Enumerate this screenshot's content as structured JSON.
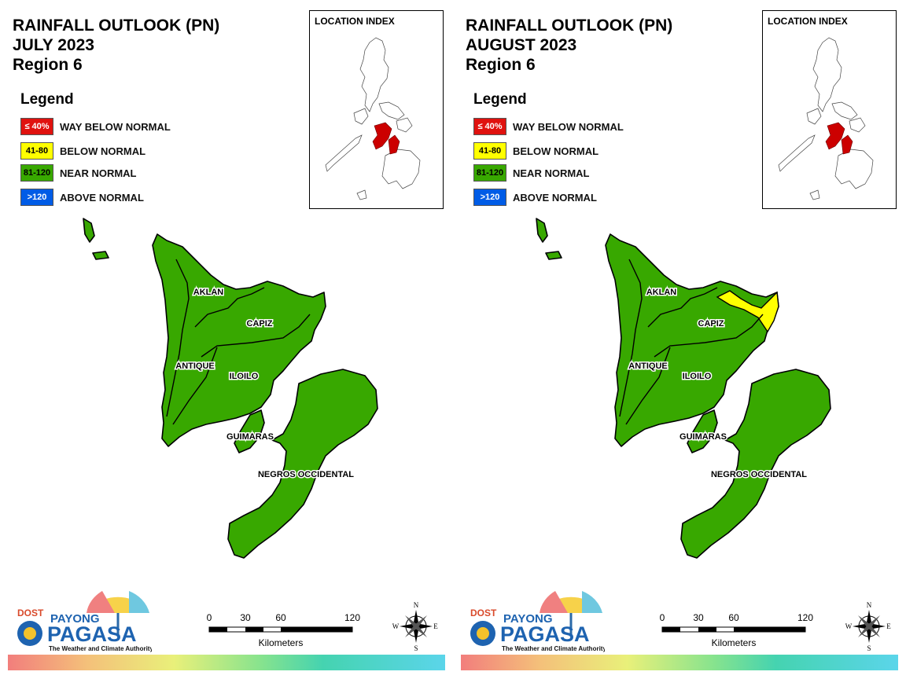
{
  "panels": [
    {
      "title_line1": "RAINFALL OUTLOOK (PN)",
      "title_line2": "JULY 2023",
      "title_line3": "Region 6",
      "provinces": [
        {
          "name": "AKLAN",
          "category": "near_normal"
        },
        {
          "name": "CAPIZ",
          "category": "near_normal"
        },
        {
          "name": "ANTIQUE",
          "category": "near_normal"
        },
        {
          "name": "ILOILO",
          "category": "near_normal"
        },
        {
          "name": "GUIMARAS",
          "category": "near_normal"
        },
        {
          "name": "NEGROS OCCIDENTAL",
          "category": "near_normal"
        }
      ],
      "capiz_north_category": "near_normal"
    },
    {
      "title_line1": "RAINFALL OUTLOOK (PN)",
      "title_line2": "AUGUST 2023",
      "title_line3": "Region 6",
      "provinces": [
        {
          "name": "AKLAN",
          "category": "near_normal"
        },
        {
          "name": "CAPIZ",
          "category": "near_normal"
        },
        {
          "name": "ANTIQUE",
          "category": "near_normal"
        },
        {
          "name": "ILOILO",
          "category": "near_normal"
        },
        {
          "name": "GUIMARAS",
          "category": "near_normal"
        },
        {
          "name": "NEGROS OCCIDENTAL",
          "category": "near_normal"
        }
      ],
      "capiz_north_category": "below_normal"
    }
  ],
  "legend": {
    "title": "Legend",
    "items": [
      {
        "key": "way_below_normal",
        "range": "≤ 40%",
        "label": "WAY BELOW NORMAL",
        "color": "#e0120f",
        "text_color": "#ffffff"
      },
      {
        "key": "below_normal",
        "range": "41-80",
        "label": "BELOW NORMAL",
        "color": "#ffff00",
        "text_color": "#000000"
      },
      {
        "key": "near_normal",
        "range": "81-120",
        "label": "NEAR NORMAL",
        "color": "#38a800",
        "text_color": "#000000"
      },
      {
        "key": "above_normal",
        "range": ">120",
        "label": "ABOVE NORMAL",
        "color": "#005ce6",
        "text_color": "#ffffff"
      }
    ]
  },
  "map_fill_color": "#38a800",
  "location_index": {
    "title": "LOCATION INDEX",
    "highlight_color": "#cc0000"
  },
  "scale": {
    "ticks": [
      "0",
      "30",
      "60",
      "120"
    ],
    "unit": "Kilometers"
  },
  "compass": {
    "n": "N",
    "e": "E",
    "s": "S",
    "w": "W"
  },
  "logo": {
    "dost": "DOST",
    "payong": "PAYONG",
    "pagasa": "PAGASA",
    "tagline": "The Weather and Climate Authority"
  }
}
